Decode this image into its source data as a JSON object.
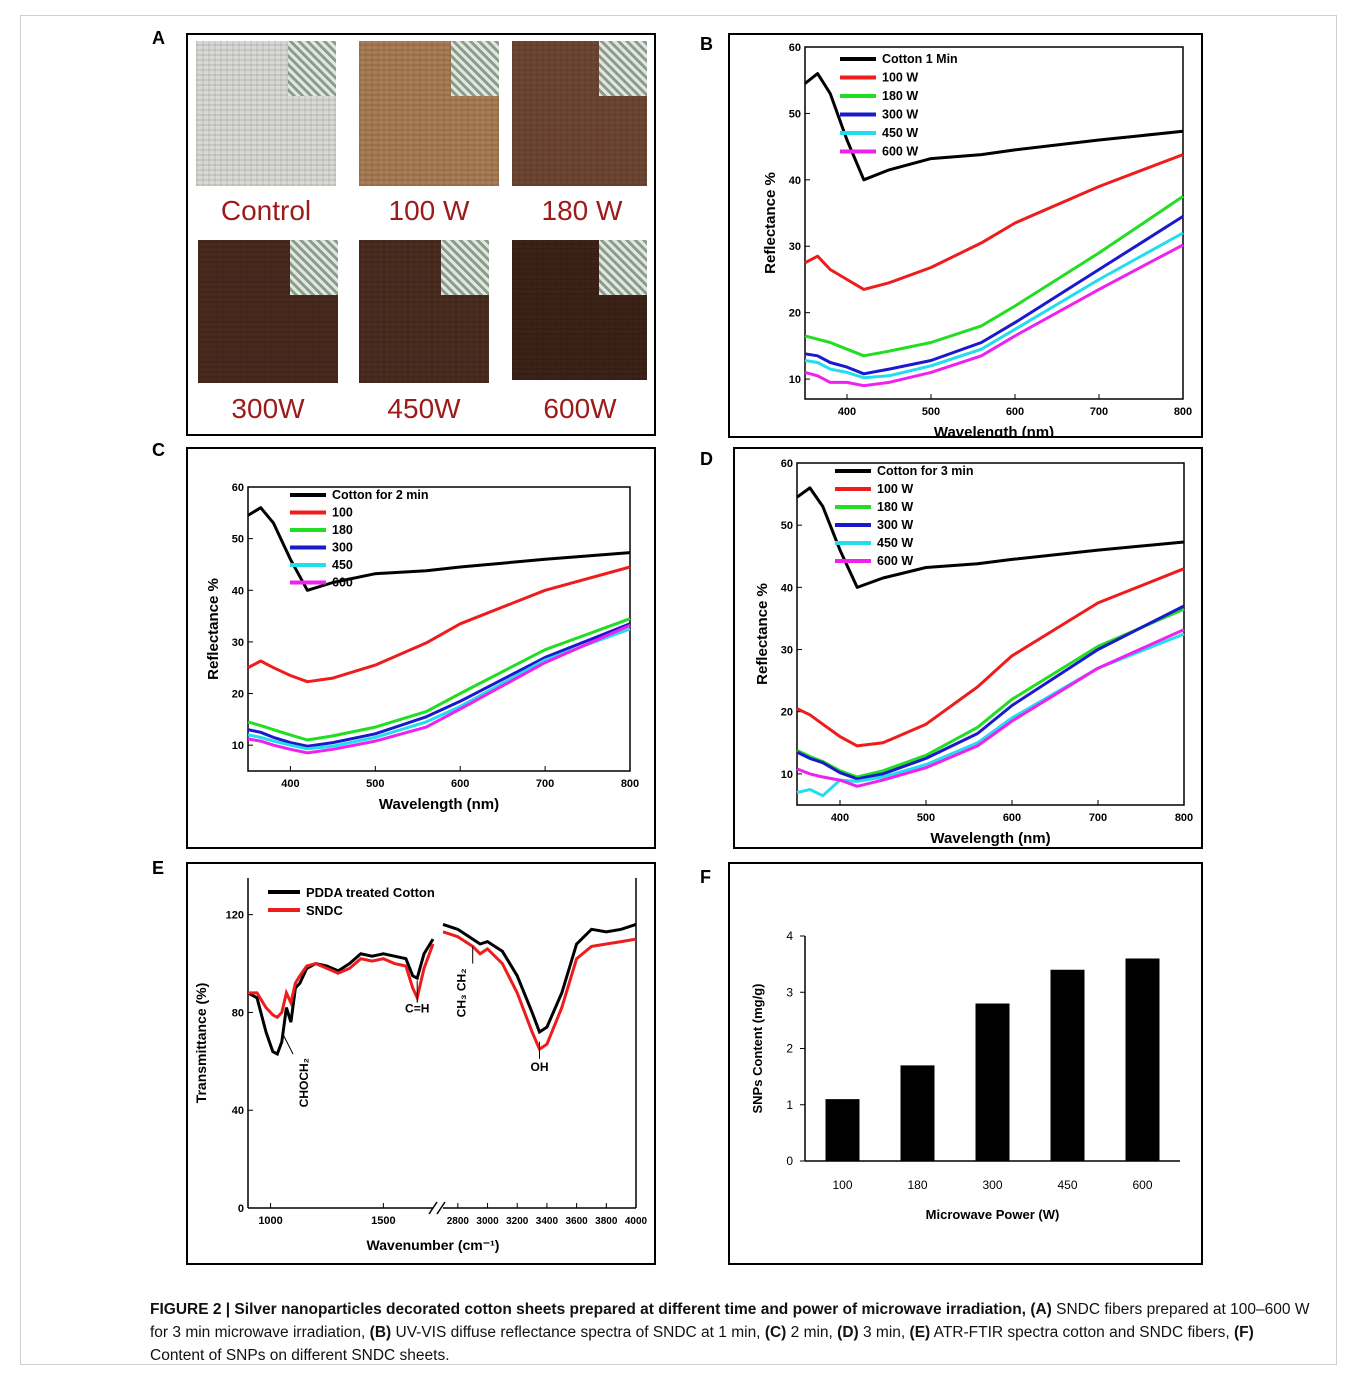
{
  "panel_labels": [
    "A",
    "B",
    "C",
    "D",
    "E",
    "F"
  ],
  "panel_a": {
    "photos": [
      {
        "label": "Control",
        "color": "#d8d8d4"
      },
      {
        "label": "100 W",
        "color": "#a87c55"
      },
      {
        "label": "180 W",
        "color": "#6e4634"
      },
      {
        "label": "300W",
        "color": "#4a2a1e"
      },
      {
        "label": "450W",
        "color": "#4a2c20"
      },
      {
        "label": "600W",
        "color": "#3d2218"
      }
    ]
  },
  "caption": {
    "lead": "FIGURE 2 | Silver nanoparticles decorated cotton sheets prepared at different time and power of microwave irradiation,",
    "a_tag": "(A)",
    "a_text": " SNDC fibers prepared at 100–600 W for 3 min microwave irradiation, ",
    "b_tag": "(B)",
    "b_text": " UV-VIS diffuse reflectance spectra of SNDC at 1 min, ",
    "c_tag": "(C)",
    "c_text": " 2 min, ",
    "d_tag": "(D)",
    "d_text": " 3 min, ",
    "e_tag": "(E)",
    "e_text": " ATR-FTIR spectra cotton and SNDC fibers, ",
    "f_tag": "(F)",
    "f_text": " Content of SNPs on different SNDC sheets."
  },
  "chart_data": [
    {
      "panel": "B",
      "type": "line",
      "xlabel": "Wavelength (nm)",
      "ylabel": "Reflectance %",
      "xlim": [
        350,
        800
      ],
      "ylim": [
        7,
        60
      ],
      "xticks": [
        400,
        500,
        600,
        700,
        800
      ],
      "yticks": [
        10,
        20,
        30,
        40,
        50,
        60
      ],
      "x": [
        350,
        365,
        380,
        400,
        420,
        450,
        500,
        560,
        600,
        700,
        800
      ],
      "series": [
        {
          "name": "Cotton 1 Min",
          "color": "#000000",
          "values": [
            54.5,
            56,
            53,
            46,
            40,
            41.5,
            43.2,
            43.8,
            44.5,
            46,
            47.3
          ]
        },
        {
          "name": "100 W",
          "color": "#ee1c1c",
          "values": [
            27.5,
            28.5,
            26.5,
            25,
            23.5,
            24.5,
            26.8,
            30.5,
            33.5,
            39,
            43.8
          ]
        },
        {
          "name": "180 W",
          "color": "#22dd22",
          "values": [
            16.5,
            16,
            15.5,
            14.5,
            13.5,
            14.2,
            15.5,
            18,
            21,
            29,
            37.5
          ]
        },
        {
          "name": "300 W",
          "color": "#1a1acc",
          "values": [
            13.8,
            13.5,
            12.5,
            11.8,
            10.8,
            11.5,
            12.8,
            15.5,
            18.5,
            26.5,
            34.5
          ]
        },
        {
          "name": "450 W",
          "color": "#22ddee",
          "values": [
            12.8,
            12.5,
            11.5,
            11,
            10.2,
            10.5,
            12,
            14.5,
            17.5,
            25,
            32
          ]
        },
        {
          "name": "600 W",
          "color": "#ee22ee",
          "values": [
            11,
            10.5,
            9.5,
            9.5,
            9,
            9.5,
            11,
            13.5,
            16.5,
            23.5,
            30.2
          ]
        }
      ]
    },
    {
      "panel": "C",
      "type": "line",
      "xlabel": "Wavelength (nm)",
      "ylabel": "Reflectance %",
      "xlim": [
        350,
        800
      ],
      "ylim": [
        5,
        60
      ],
      "xticks": [
        400,
        500,
        600,
        700,
        800
      ],
      "yticks": [
        10,
        20,
        30,
        40,
        50,
        60
      ],
      "x": [
        350,
        365,
        380,
        400,
        420,
        450,
        500,
        560,
        600,
        700,
        800
      ],
      "series": [
        {
          "name": "Cotton for 2 min",
          "color": "#000000",
          "values": [
            54.5,
            56,
            53,
            46,
            40,
            41.5,
            43.2,
            43.8,
            44.5,
            46,
            47.3
          ]
        },
        {
          "name": "100",
          "color": "#ee1c1c",
          "values": [
            25,
            26.3,
            25,
            23.5,
            22.3,
            23,
            25.5,
            29.8,
            33.5,
            40,
            44.5
          ]
        },
        {
          "name": "180",
          "color": "#22dd22",
          "values": [
            14.5,
            13.8,
            13,
            12,
            11,
            11.8,
            13.5,
            16.5,
            20,
            28.5,
            34.5
          ]
        },
        {
          "name": "300",
          "color": "#1a1acc",
          "values": [
            13,
            12.5,
            11.5,
            10.5,
            9.8,
            10.5,
            12.2,
            15.5,
            18.5,
            27,
            33.5
          ]
        },
        {
          "name": "450",
          "color": "#22ddee",
          "values": [
            12,
            11.5,
            10.8,
            10,
            9.3,
            9.8,
            11.5,
            14.5,
            17.5,
            26.5,
            32.5
          ]
        },
        {
          "name": "600",
          "color": "#ee22ee",
          "values": [
            11.2,
            10.8,
            10,
            9.2,
            8.5,
            9.2,
            10.8,
            13.5,
            17,
            26,
            33.2
          ]
        }
      ]
    },
    {
      "panel": "D",
      "type": "line",
      "xlabel": "Wavelength (nm)",
      "ylabel": "Reflectance %",
      "xlim": [
        350,
        800
      ],
      "ylim": [
        5,
        60
      ],
      "xticks": [
        400,
        500,
        600,
        700,
        800
      ],
      "yticks": [
        10,
        20,
        30,
        40,
        50,
        60
      ],
      "x": [
        350,
        365,
        380,
        400,
        420,
        450,
        500,
        560,
        600,
        700,
        800
      ],
      "series": [
        {
          "name": "Cotton for 3 min",
          "color": "#000000",
          "values": [
            54.5,
            56,
            53,
            46,
            40,
            41.5,
            43.2,
            43.8,
            44.5,
            46,
            47.3
          ]
        },
        {
          "name": "100 W",
          "color": "#ee1c1c",
          "values": [
            20.5,
            19.5,
            18,
            16,
            14.5,
            15,
            18,
            24,
            29,
            37.5,
            43
          ]
        },
        {
          "name": "180 W",
          "color": "#22dd22",
          "values": [
            13.8,
            12.8,
            12,
            10.5,
            9.5,
            10.5,
            13,
            17.5,
            22,
            30.5,
            36.5
          ]
        },
        {
          "name": "300 W",
          "color": "#1a1acc",
          "values": [
            13.5,
            12.5,
            11.8,
            10.2,
            9.2,
            10,
            12.5,
            16.5,
            21,
            30,
            37
          ]
        },
        {
          "name": "450 W",
          "color": "#22ddee",
          "values": [
            7,
            7.5,
            6.5,
            9,
            8.8,
            9.5,
            11.5,
            15,
            19,
            27,
            32.5
          ]
        },
        {
          "name": "600 W",
          "color": "#ee22ee",
          "values": [
            10.8,
            10,
            9.5,
            9,
            8,
            9,
            11,
            14.5,
            18.5,
            27,
            33.2
          ]
        }
      ]
    },
    {
      "panel": "E",
      "type": "line",
      "xlabel": "Wavenumber (cm⁻¹)",
      "ylabel": "Transmittance (%)",
      "ylim": [
        0,
        135
      ],
      "yticks": [
        0,
        40,
        80,
        120
      ],
      "xticks_left": [
        1000,
        1500
      ],
      "xticks_right": [
        2800,
        3000,
        3200,
        3400,
        3600,
        3800,
        4000
      ],
      "annotations": [
        "CHOCH₂",
        "C=H",
        "CH₃ CH₂",
        "OH"
      ],
      "series": [
        {
          "name": "PDDA treated Cotton",
          "color": "#000000",
          "left_x": [
            900,
            940,
            980,
            1010,
            1030,
            1050,
            1070,
            1090,
            1110,
            1130,
            1160,
            1200,
            1250,
            1300,
            1350,
            1400,
            1450,
            1500,
            1550,
            1600,
            1630,
            1650,
            1680,
            1720
          ],
          "left_y": [
            88,
            86,
            72,
            64,
            63,
            68,
            82,
            76,
            90,
            92,
            98,
            100,
            99,
            97,
            100,
            104,
            103,
            104,
            103,
            102,
            95,
            94,
            104,
            110
          ],
          "right_x": [
            2700,
            2800,
            2900,
            2950,
            3000,
            3100,
            3200,
            3300,
            3350,
            3400,
            3500,
            3600,
            3700,
            3800,
            3900,
            4000
          ],
          "right_y": [
            116,
            114,
            110,
            108,
            109,
            105,
            95,
            80,
            72,
            74,
            88,
            108,
            114,
            113,
            114,
            116
          ]
        },
        {
          "name": "SNDC",
          "color": "#ee1c1c",
          "left_x": [
            900,
            940,
            980,
            1010,
            1030,
            1050,
            1070,
            1090,
            1110,
            1130,
            1160,
            1200,
            1250,
            1300,
            1350,
            1400,
            1450,
            1500,
            1550,
            1600,
            1630,
            1650,
            1680,
            1720
          ],
          "left_y": [
            88,
            88,
            82,
            79,
            78,
            80,
            88,
            84,
            92,
            95,
            99,
            100,
            98,
            96,
            98,
            102,
            101,
            102,
            100,
            99,
            90,
            86,
            98,
            108
          ],
          "right_x": [
            2700,
            2800,
            2900,
            2950,
            3000,
            3100,
            3200,
            3300,
            3350,
            3400,
            3500,
            3600,
            3700,
            3800,
            3900,
            4000
          ],
          "right_y": [
            113,
            111,
            107,
            104,
            106,
            100,
            88,
            72,
            65,
            67,
            82,
            102,
            107,
            108,
            109,
            110
          ]
        }
      ]
    },
    {
      "panel": "F",
      "type": "bar",
      "xlabel": "Microwave Power (W)",
      "ylabel": "SNPs Content (mg/g)",
      "ylim": [
        0,
        4
      ],
      "yticks": [
        0,
        1,
        2,
        3,
        4
      ],
      "categories": [
        "100",
        "180",
        "300",
        "450",
        "600"
      ],
      "values": [
        1.1,
        1.7,
        2.8,
        3.4,
        3.6
      ],
      "color": "#000000"
    }
  ]
}
